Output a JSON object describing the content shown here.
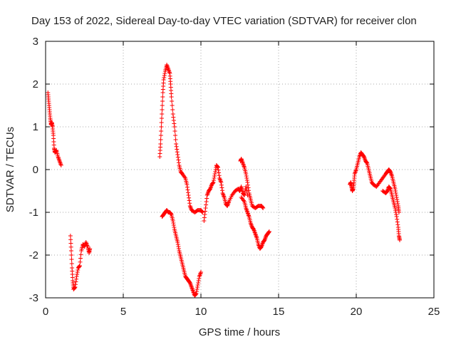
{
  "chart_data": {
    "type": "scatter",
    "title": "Day 153 of 2022, Sidereal Day-to-day VTEC variation (SDTVAR) for receiver clon",
    "xlabel": "GPS time / hours",
    "ylabel": "SDTVAR / TECUs",
    "xlim": [
      0,
      25
    ],
    "ylim": [
      -3,
      3
    ],
    "xticks": [
      0,
      5,
      10,
      15,
      20,
      25
    ],
    "yticks": [
      -3,
      -2,
      -1,
      0,
      1,
      2,
      3
    ],
    "grid": true,
    "marker": "+",
    "color": "#ff0000",
    "segments": [
      {
        "name": "seg1",
        "points": [
          [
            0.15,
            1.8
          ],
          [
            0.2,
            1.6
          ],
          [
            0.25,
            1.4
          ],
          [
            0.3,
            1.2
          ],
          [
            0.35,
            1.05
          ],
          [
            0.4,
            1.1
          ],
          [
            0.45,
            1.0
          ],
          [
            0.5,
            0.8
          ],
          [
            0.55,
            0.5
          ],
          [
            0.6,
            0.4
          ],
          [
            0.7,
            0.45
          ],
          [
            0.8,
            0.3
          ],
          [
            0.9,
            0.2
          ],
          [
            1.0,
            0.1
          ]
        ]
      },
      {
        "name": "seg2",
        "points": [
          [
            1.6,
            -1.55
          ],
          [
            1.65,
            -1.9
          ],
          [
            1.7,
            -2.3
          ],
          [
            1.75,
            -2.6
          ],
          [
            1.8,
            -2.8
          ],
          [
            1.9,
            -2.75
          ],
          [
            2.0,
            -2.5
          ],
          [
            2.1,
            -2.3
          ],
          [
            2.2,
            -2.25
          ],
          [
            2.3,
            -1.9
          ],
          [
            2.4,
            -1.75
          ],
          [
            2.5,
            -1.8
          ],
          [
            2.6,
            -1.7
          ],
          [
            2.7,
            -1.8
          ],
          [
            2.8,
            -1.95
          ],
          [
            2.85,
            -1.85
          ]
        ]
      },
      {
        "name": "seg3a",
        "points": [
          [
            7.35,
            0.3
          ],
          [
            7.4,
            0.6
          ],
          [
            7.45,
            1.0
          ],
          [
            7.5,
            1.4
          ],
          [
            7.55,
            1.8
          ],
          [
            7.6,
            2.1
          ],
          [
            7.7,
            2.3
          ],
          [
            7.8,
            2.45
          ],
          [
            7.9,
            2.35
          ],
          [
            8.0,
            2.25
          ],
          [
            8.05,
            2.0
          ],
          [
            8.1,
            1.7
          ],
          [
            8.2,
            1.3
          ],
          [
            8.3,
            1.0
          ],
          [
            8.4,
            0.6
          ],
          [
            8.5,
            0.35
          ],
          [
            8.6,
            0.1
          ],
          [
            8.7,
            -0.05
          ],
          [
            8.8,
            -0.1
          ],
          [
            9.0,
            -0.2
          ],
          [
            9.1,
            -0.35
          ],
          [
            9.2,
            -0.6
          ],
          [
            9.3,
            -0.85
          ],
          [
            9.4,
            -0.95
          ],
          [
            9.6,
            -1.0
          ],
          [
            9.8,
            -0.95
          ],
          [
            10.0,
            -0.95
          ],
          [
            10.1,
            -1.0
          ]
        ]
      },
      {
        "name": "seg3b",
        "points": [
          [
            7.5,
            -1.1
          ],
          [
            7.6,
            -1.05
          ],
          [
            7.7,
            -1.0
          ],
          [
            7.8,
            -0.95
          ],
          [
            7.9,
            -1.0
          ],
          [
            8.0,
            -1.0
          ],
          [
            8.1,
            -1.05
          ],
          [
            8.2,
            -1.2
          ],
          [
            8.3,
            -1.4
          ],
          [
            8.4,
            -1.55
          ],
          [
            8.5,
            -1.7
          ],
          [
            8.6,
            -1.9
          ],
          [
            8.7,
            -2.05
          ],
          [
            8.8,
            -2.2
          ],
          [
            8.9,
            -2.35
          ],
          [
            9.0,
            -2.5
          ],
          [
            9.1,
            -2.55
          ],
          [
            9.2,
            -2.6
          ],
          [
            9.3,
            -2.65
          ],
          [
            9.4,
            -2.75
          ],
          [
            9.5,
            -2.85
          ],
          [
            9.6,
            -2.95
          ],
          [
            9.7,
            -2.9
          ],
          [
            9.8,
            -2.7
          ],
          [
            9.9,
            -2.5
          ],
          [
            10.0,
            -2.4
          ]
        ]
      },
      {
        "name": "seg4",
        "points": [
          [
            10.2,
            -1.2
          ],
          [
            10.3,
            -0.9
          ],
          [
            10.4,
            -0.6
          ],
          [
            10.5,
            -0.5
          ],
          [
            10.6,
            -0.45
          ],
          [
            10.7,
            -0.35
          ],
          [
            10.8,
            -0.3
          ],
          [
            10.9,
            -0.1
          ],
          [
            11.0,
            0.1
          ],
          [
            11.1,
            0.05
          ],
          [
            11.2,
            -0.2
          ],
          [
            11.3,
            -0.3
          ],
          [
            11.4,
            -0.55
          ],
          [
            11.5,
            -0.65
          ],
          [
            11.6,
            -0.8
          ],
          [
            11.7,
            -0.85
          ],
          [
            11.8,
            -0.75
          ],
          [
            12.0,
            -0.6
          ],
          [
            12.2,
            -0.5
          ],
          [
            12.4,
            -0.45
          ],
          [
            12.5,
            -0.5
          ],
          [
            12.6,
            -0.4
          ],
          [
            12.7,
            -0.55
          ],
          [
            12.8,
            -0.6
          ],
          [
            12.9,
            -0.4
          ],
          [
            13.0,
            -0.6
          ]
        ]
      },
      {
        "name": "seg4b",
        "points": [
          [
            12.55,
            0.2
          ],
          [
            12.6,
            0.25
          ],
          [
            12.7,
            0.15
          ],
          [
            12.8,
            0.05
          ],
          [
            12.9,
            -0.1
          ],
          [
            13.0,
            -0.3
          ],
          [
            13.1,
            -0.55
          ],
          [
            13.2,
            -0.7
          ],
          [
            13.3,
            -0.85
          ],
          [
            13.5,
            -0.9
          ],
          [
            13.7,
            -0.85
          ],
          [
            13.9,
            -0.85
          ],
          [
            14.0,
            -0.9
          ]
        ]
      },
      {
        "name": "seg4c",
        "points": [
          [
            12.6,
            -0.65
          ],
          [
            12.8,
            -0.75
          ],
          [
            12.9,
            -0.9
          ],
          [
            13.0,
            -1.0
          ],
          [
            13.1,
            -1.1
          ],
          [
            13.2,
            -1.25
          ],
          [
            13.3,
            -1.35
          ],
          [
            13.4,
            -1.4
          ],
          [
            13.5,
            -1.5
          ],
          [
            13.6,
            -1.6
          ],
          [
            13.7,
            -1.75
          ],
          [
            13.8,
            -1.85
          ],
          [
            13.9,
            -1.8
          ],
          [
            14.0,
            -1.7
          ],
          [
            14.1,
            -1.65
          ],
          [
            14.2,
            -1.55
          ],
          [
            14.3,
            -1.5
          ],
          [
            14.4,
            -1.45
          ]
        ]
      },
      {
        "name": "seg5",
        "points": [
          [
            19.6,
            -0.35
          ],
          [
            19.65,
            -0.3
          ],
          [
            19.7,
            -0.4
          ],
          [
            19.75,
            -0.5
          ],
          [
            19.8,
            -0.45
          ],
          [
            19.85,
            -0.3
          ],
          [
            19.9,
            -0.1
          ],
          [
            20.0,
            0.0
          ],
          [
            20.1,
            0.15
          ],
          [
            20.2,
            0.3
          ],
          [
            20.3,
            0.4
          ],
          [
            20.4,
            0.35
          ],
          [
            20.5,
            0.3
          ],
          [
            20.6,
            0.2
          ],
          [
            20.7,
            0.15
          ],
          [
            20.8,
            0.0
          ],
          [
            20.9,
            -0.15
          ],
          [
            21.0,
            -0.3
          ],
          [
            21.1,
            -0.35
          ],
          [
            21.3,
            -0.4
          ],
          [
            21.5,
            -0.3
          ],
          [
            21.7,
            -0.2
          ],
          [
            21.9,
            -0.1
          ],
          [
            22.0,
            -0.05
          ],
          [
            22.1,
            0.0
          ],
          [
            22.2,
            -0.05
          ],
          [
            22.3,
            -0.15
          ],
          [
            22.4,
            -0.3
          ],
          [
            22.5,
            -0.45
          ],
          [
            22.6,
            -0.65
          ],
          [
            22.7,
            -0.85
          ],
          [
            22.75,
            -1.0
          ]
        ]
      },
      {
        "name": "seg5b",
        "points": [
          [
            21.7,
            -0.5
          ],
          [
            21.9,
            -0.55
          ],
          [
            22.0,
            -0.5
          ],
          [
            22.1,
            -0.4
          ],
          [
            22.2,
            -0.45
          ],
          [
            22.3,
            -0.6
          ],
          [
            22.4,
            -0.75
          ],
          [
            22.5,
            -0.9
          ],
          [
            22.6,
            -1.1
          ],
          [
            22.7,
            -1.35
          ],
          [
            22.75,
            -1.55
          ],
          [
            22.8,
            -1.65
          ]
        ]
      }
    ]
  }
}
